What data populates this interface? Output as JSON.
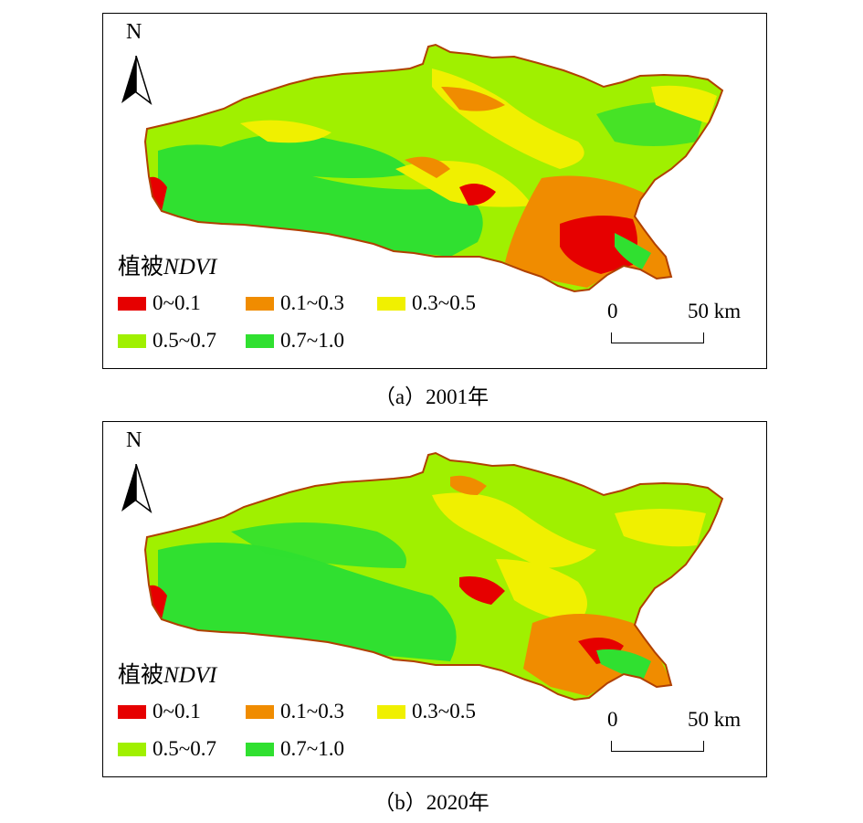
{
  "legend": {
    "title_prefix": "植被",
    "title_italic": "NDVI",
    "classes": [
      {
        "label": "0~0.1",
        "color": "#e60000"
      },
      {
        "label": "0.1~0.3",
        "color": "#f08c00"
      },
      {
        "label": "0.3~0.5",
        "color": "#f0f000"
      },
      {
        "label": "0.5~0.7",
        "color": "#a0f000"
      },
      {
        "label": "0.7~1.0",
        "color": "#30e030"
      }
    ]
  },
  "north_label": "N",
  "scale": {
    "zero": "0",
    "max": "50 km"
  },
  "panels": [
    {
      "caption": "（a）2001年"
    },
    {
      "caption": "（b）2020年"
    }
  ]
}
